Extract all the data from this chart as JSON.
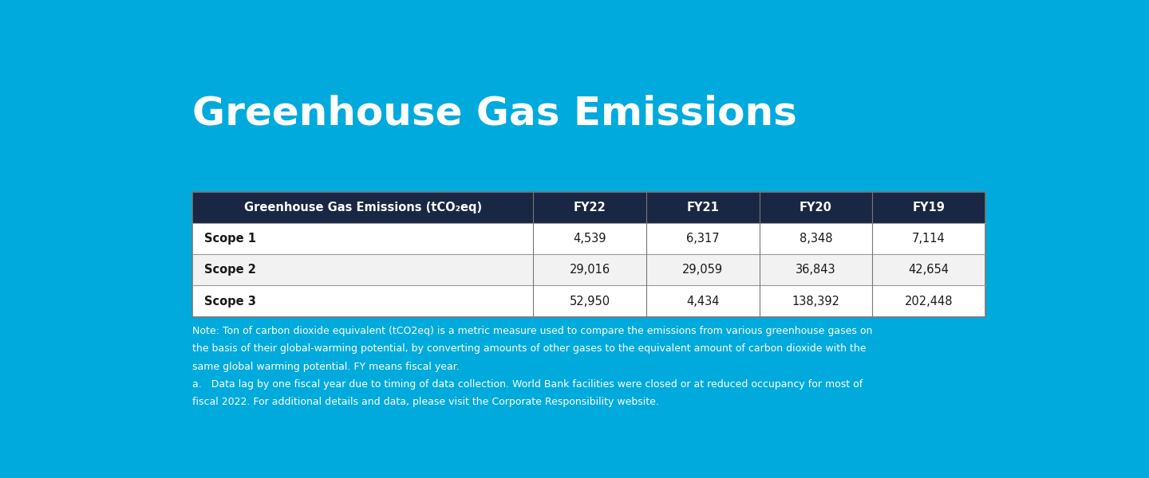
{
  "title": "Greenhouse Gas Emissions",
  "background_color": "#00AADD",
  "header_bg_color": "#1a2744",
  "header_text_color": "#FFFFFF",
  "row_bg_colors": [
    "#FFFFFF",
    "#F2F2F2",
    "#FFFFFF"
  ],
  "row_text_color": "#1a1a1a",
  "table_border_color": "#888888",
  "col_header": "Greenhouse Gas Emissions (tCO₂eq)",
  "columns": [
    "FY22",
    "FY21",
    "FY20",
    "FY19"
  ],
  "rows": [
    {
      "label": "Scope 1",
      "values": [
        "4,539",
        "6,317",
        "8,348",
        "7,114"
      ]
    },
    {
      "label": "Scope 2",
      "values": [
        "29,016",
        "29,059",
        "36,843",
        "42,654"
      ]
    },
    {
      "label": "Scope 3",
      "values": [
        "52,950",
        "4,434",
        "138,392",
        "202,448"
      ]
    }
  ],
  "note_lines": [
    "Note: Ton of carbon dioxide equivalent (tCO2eq) is a metric measure used to compare the emissions from various greenhouse gases on",
    "the basis of their global-warming potential, by converting amounts of other gases to the equivalent amount of carbon dioxide with the",
    "same global warming potential. FY means fiscal year.",
    "a.   Data lag by one fiscal year due to timing of data collection. World Bank facilities were closed or at reduced occupancy for most of",
    "fiscal 2022. For additional details and data, please visit the Corporate Responsibility website."
  ],
  "title_fontsize": 36,
  "header_fontsize": 10.5,
  "cell_fontsize": 10.5,
  "note_fontsize": 9
}
